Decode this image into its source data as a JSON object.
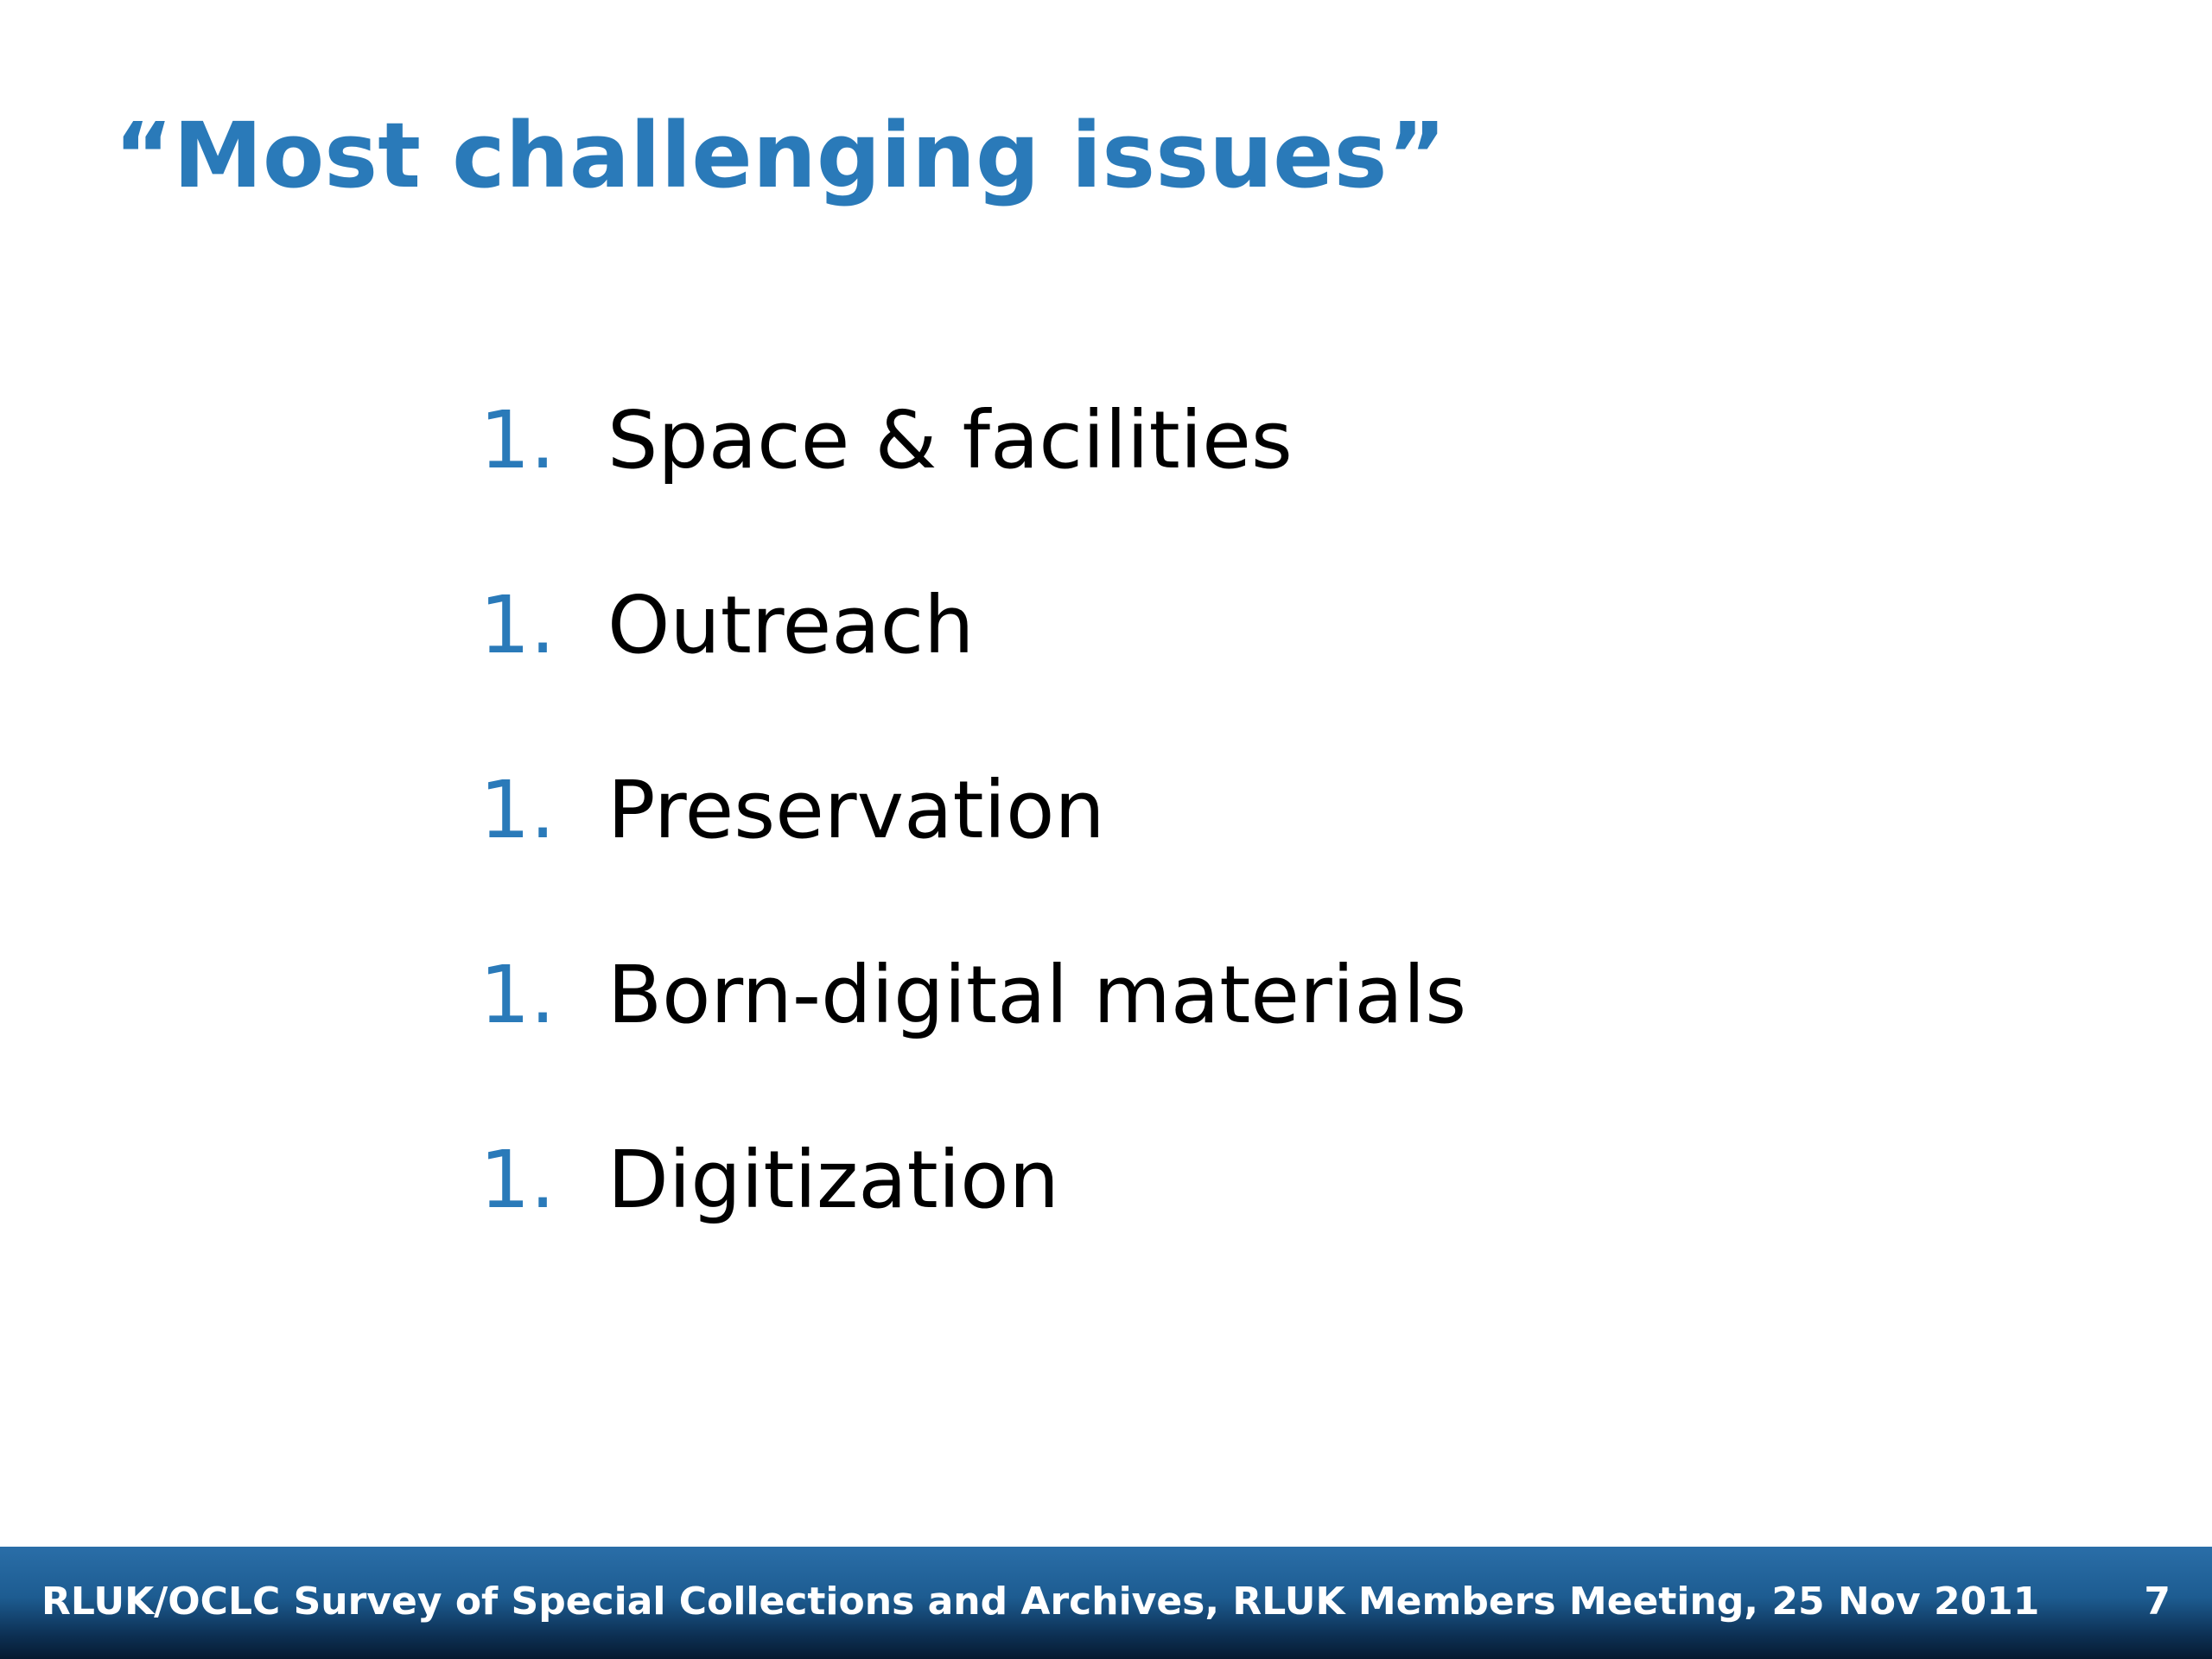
{
  "slide": {
    "title": "“Most challenging issues”",
    "items": [
      {
        "number": "1.",
        "text": "Space & facilities"
      },
      {
        "number": "1.",
        "text": "Outreach"
      },
      {
        "number": "1.",
        "text": "Preservation"
      },
      {
        "number": "1.",
        "text": "Born-digital materials"
      },
      {
        "number": "1.",
        "text": "Digitization"
      }
    ]
  },
  "footer": {
    "text": "RLUK/OCLC Survey of Special Collections and Archives, RLUK Members Meeting, 25 Nov 2011",
    "page_number": "7"
  },
  "colors": {
    "accent": "#2a7ab9",
    "body_text": "#000000",
    "footer_bar": "#1d5c91"
  }
}
